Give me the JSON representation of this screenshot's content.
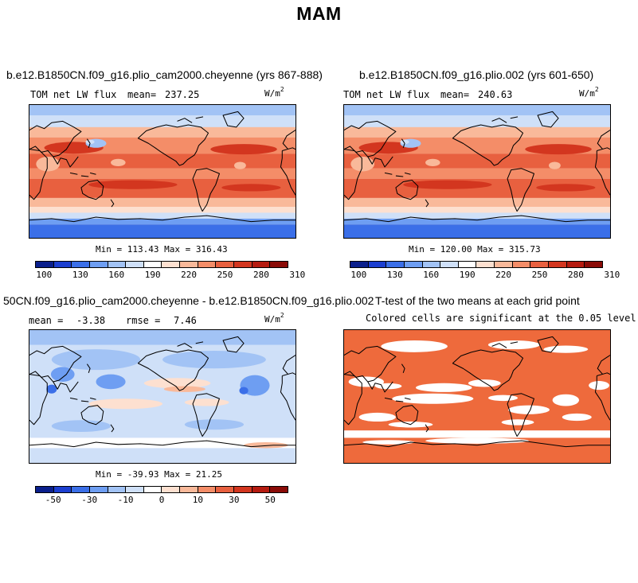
{
  "title": "MAM",
  "colors": {
    "abs_levels": [
      "#0a1f8c",
      "#1c3fd0",
      "#3b6fe8",
      "#6e9ef2",
      "#a2c3f5",
      "#cfe0f8",
      "#ffffff",
      "#fde0d0",
      "#f9b99a",
      "#f48d68",
      "#e8603f",
      "#d3361f",
      "#b51b10",
      "#8a0b07"
    ],
    "diff_levels": [
      "#0a1f8c",
      "#1c3fd0",
      "#3b6fe8",
      "#6e9ef2",
      "#a2c3f5",
      "#cfe0f8",
      "#ffffff",
      "#fde0d0",
      "#f9b99a",
      "#f48d68",
      "#e8603f",
      "#d3361f",
      "#b51b10",
      "#8a0b07"
    ],
    "ttest": "#ee6a3c",
    "coast": "#000000"
  },
  "panels": {
    "top_left": {
      "title": "b.e12.B1850CN.f09_g16.plio_cam2000.cheyenne (yrs 867-888)",
      "variable": "TOM net LW flux",
      "mean_label": "mean=",
      "mean_value": "237.25",
      "units": "W/m",
      "units_exp": "2",
      "minmax": "Min = 113.43 Max = 316.43",
      "colorbar_labels": [
        "100",
        "130",
        "160",
        "190",
        "220",
        "250",
        "280",
        "310"
      ]
    },
    "top_right": {
      "title": "b.e12.B1850CN.f09_g16.plio.002 (yrs 601-650)",
      "variable": "TOM net LW flux",
      "mean_label": "mean=",
      "mean_value": "240.63",
      "units": "W/m",
      "units_exp": "2",
      "minmax": "Min = 120.00 Max = 315.73",
      "colorbar_labels": [
        "100",
        "130",
        "160",
        "190",
        "220",
        "250",
        "280",
        "310"
      ]
    },
    "bottom_left": {
      "title": "50CN.f09_g16.plio_cam2000.cheyenne - b.e12.B1850CN.f09_g16.plio.002",
      "mean_label": "mean =",
      "mean_value": "-3.38",
      "rmse_label": "rmse =",
      "rmse_value": "7.46",
      "units": "W/m",
      "units_exp": "2",
      "minmax": "Min = -39.93 Max =  21.25",
      "colorbar_labels": [
        "-50",
        "-30",
        "-10",
        "0",
        "10",
        "30",
        "50"
      ]
    },
    "bottom_right": {
      "title": "T-test of the two means at each grid point",
      "subtitle": "Colored cells are significant at the 0.05 level"
    }
  }
}
